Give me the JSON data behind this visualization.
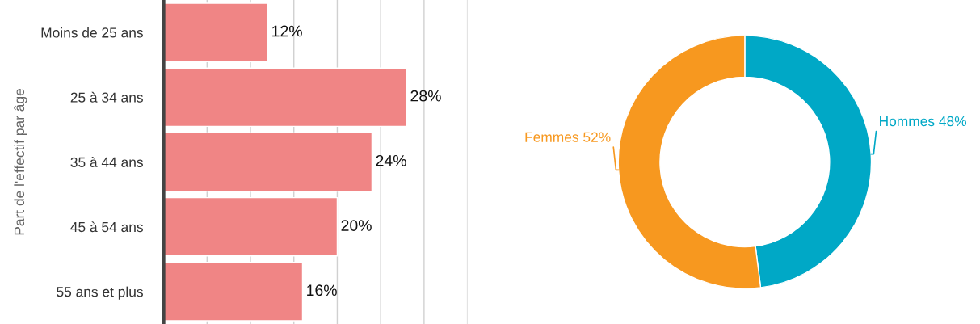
{
  "chart_data": [
    {
      "type": "bar",
      "orientation": "horizontal",
      "ylabel": "Part de l'effectif par âge",
      "categories": [
        "Moins de 25 ans",
        "25 à 34 ans",
        "35 à 44 ans",
        "45 à 54 ans",
        "55 ans et plus"
      ],
      "values": [
        12,
        28,
        24,
        20,
        16
      ],
      "color": "#f08585",
      "value_labels": [
        "12%",
        "28%",
        "24%",
        "20%",
        "16%"
      ],
      "xlim": [
        0,
        35
      ],
      "xticks": [
        {
          "value": 0,
          "label": null
        },
        {
          "value": 5,
          "label": null
        },
        {
          "value": 10,
          "label": null
        },
        {
          "value": 15,
          "label": null
        },
        {
          "value": 20,
          "label": null
        },
        {
          "value": 25,
          "label": null
        },
        {
          "value": 30,
          "label": null
        },
        {
          "value": 35,
          "label": null
        }
      ],
      "grid": "x",
      "tick_labels": "y",
      "legend": false
    },
    {
      "type": "donut",
      "categories": [
        "Hommes",
        "Femmes"
      ],
      "values": [
        48,
        52
      ],
      "colors": [
        "#00a8c6",
        "#f7981f"
      ],
      "value_labels": [
        "48%",
        "52%"
      ]
    }
  ]
}
